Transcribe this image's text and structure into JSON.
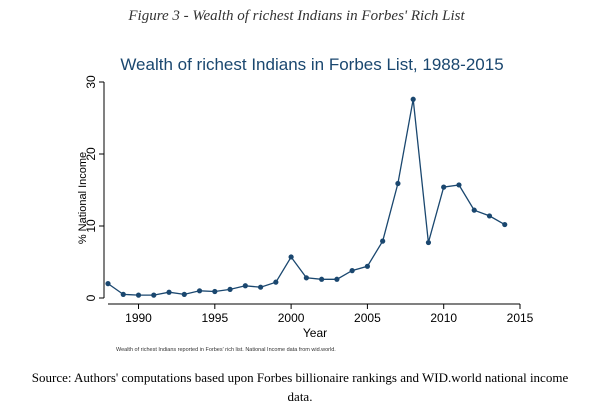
{
  "figure_caption": "Figure 3 - Wealth of richest Indians in Forbes' Rich List",
  "source": "Source: Authors' computations based upon Forbes billionaire rankings and WID.world national income data.",
  "chart_data": {
    "type": "line",
    "title": "Wealth of richest Indians in Forbes List, 1988-2015",
    "xlabel": "Year",
    "ylabel": "% National Income",
    "note": "Wealth of richest Indians reported in Forbes' rich list. National Income data from wid.world.",
    "xlim": [
      1988,
      2015
    ],
    "ylim": [
      0,
      30
    ],
    "xticks": [
      1990,
      1995,
      2000,
      2005,
      2010,
      2015
    ],
    "yticks": [
      0,
      10,
      20,
      30
    ],
    "grid": false,
    "colors": {
      "title": "#1a476f",
      "line": "#1a476f",
      "marker": "#1a476f"
    },
    "x": [
      1988,
      1989,
      1990,
      1991,
      1992,
      1993,
      1994,
      1995,
      1996,
      1997,
      1998,
      1999,
      2000,
      2001,
      2002,
      2003,
      2004,
      2005,
      2006,
      2007,
      2008,
      2009,
      2010,
      2011,
      2012,
      2013,
      2014
    ],
    "series": [
      {
        "values": [
          2.0,
          0.5,
          0.4,
          0.4,
          0.8,
          0.5,
          1.0,
          0.9,
          1.2,
          1.7,
          1.5,
          2.2,
          5.7,
          2.8,
          2.6,
          2.6,
          3.8,
          4.4,
          7.9,
          15.9,
          27.6,
          7.7,
          15.4,
          15.7,
          12.2,
          11.4,
          10.2
        ]
      }
    ]
  }
}
